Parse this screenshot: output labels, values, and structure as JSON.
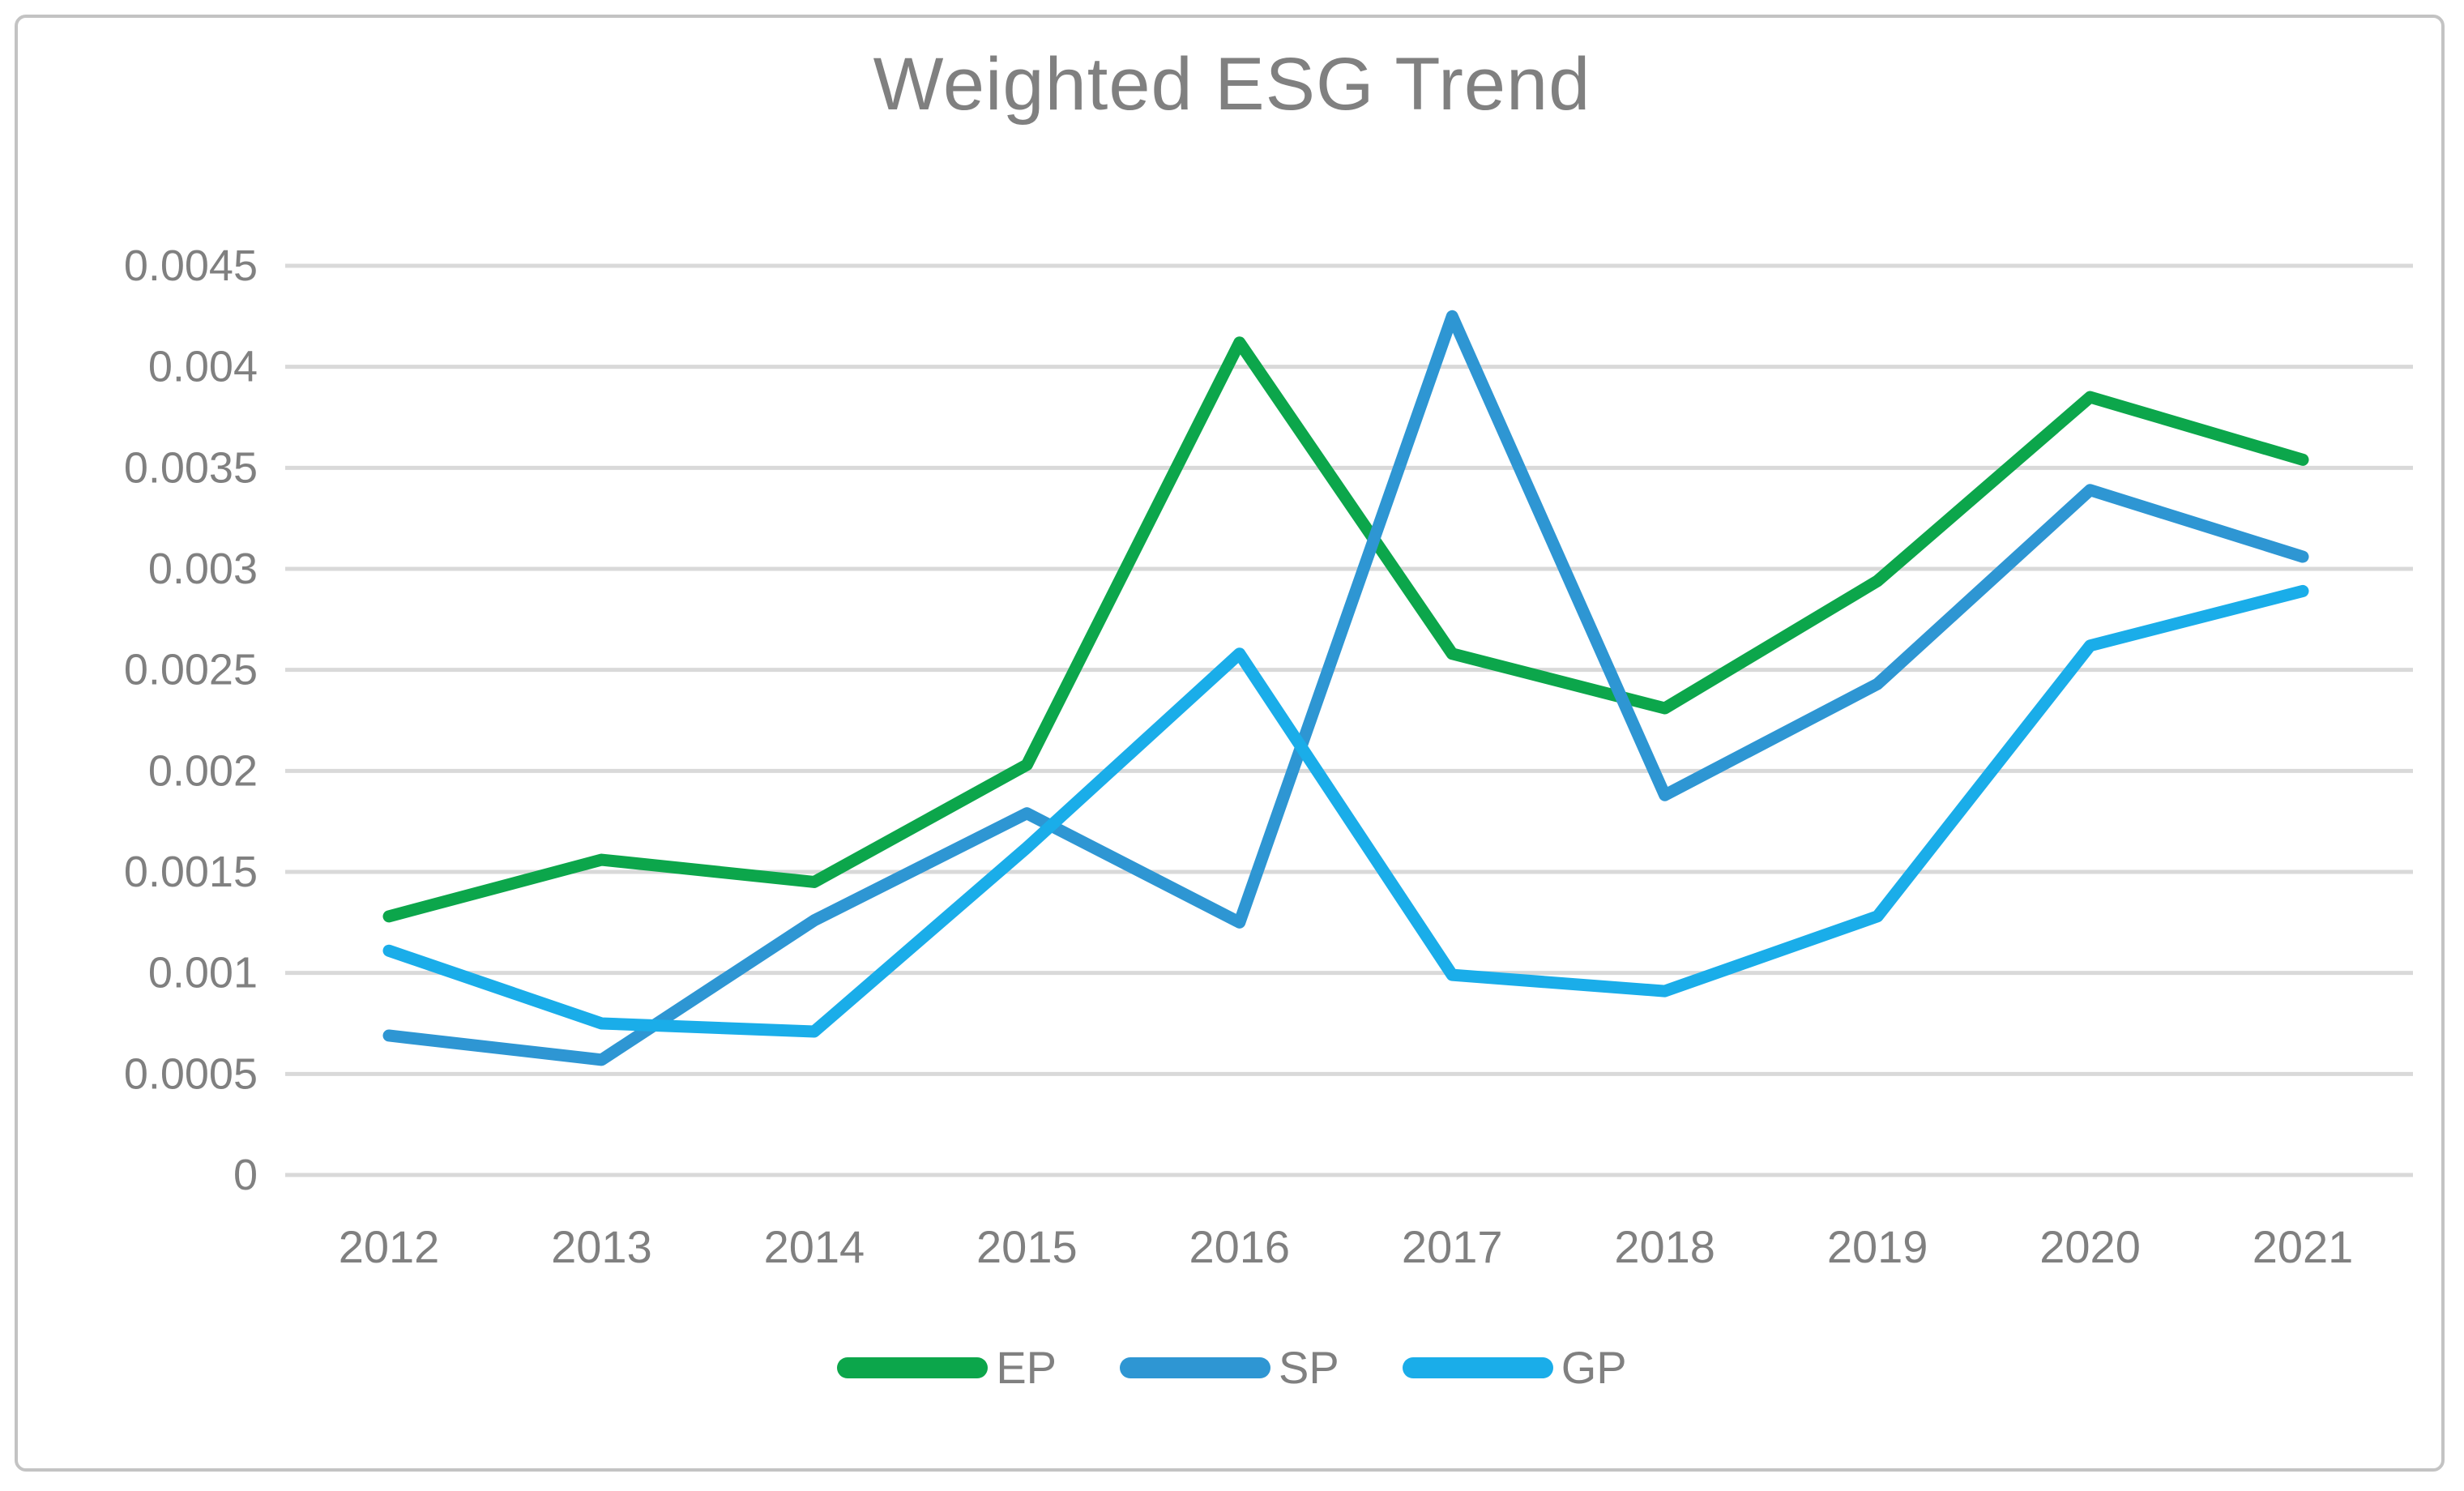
{
  "chart_data": {
    "type": "line",
    "title": "Weighted ESG Trend",
    "x": [
      2012,
      2013,
      2014,
      2015,
      2016,
      2017,
      2018,
      2019,
      2020,
      2021
    ],
    "series": [
      {
        "name": "EP",
        "color": "#0ca64b",
        "values": [
          0.00128,
          0.00156,
          0.00145,
          0.00203,
          0.00412,
          0.00258,
          0.00231,
          0.00294,
          0.00385,
          0.00354
        ]
      },
      {
        "name": "SP",
        "color": "#2e96d3",
        "values": [
          0.00069,
          0.00057,
          0.00126,
          0.00179,
          0.00125,
          0.00425,
          0.00188,
          0.00243,
          0.00339,
          0.00306
        ]
      },
      {
        "name": "GP",
        "color": "#1aade9",
        "values": [
          0.00111,
          0.00075,
          0.00071,
          0.00162,
          0.00258,
          0.00099,
          0.00091,
          0.00128,
          0.00262,
          0.00289
        ]
      }
    ],
    "ylim": [
      0,
      0.0045
    ],
    "ytick_step": 0.0005,
    "ytick_labels": [
      "0",
      "0.0005",
      "0.001",
      "0.0015",
      "0.002",
      "0.0025",
      "0.003",
      "0.0035",
      "0.004",
      "0.0045"
    ],
    "xtick_labels": [
      "2012",
      "2013",
      "2014",
      "2015",
      "2016",
      "2017",
      "2018",
      "2019",
      "2020",
      "2021"
    ],
    "grid": "horizontal",
    "legend_position": "bottom",
    "gridline_color": "#d9d9d9",
    "text_color": "#808080",
    "border_color": "#c3c3c3"
  }
}
